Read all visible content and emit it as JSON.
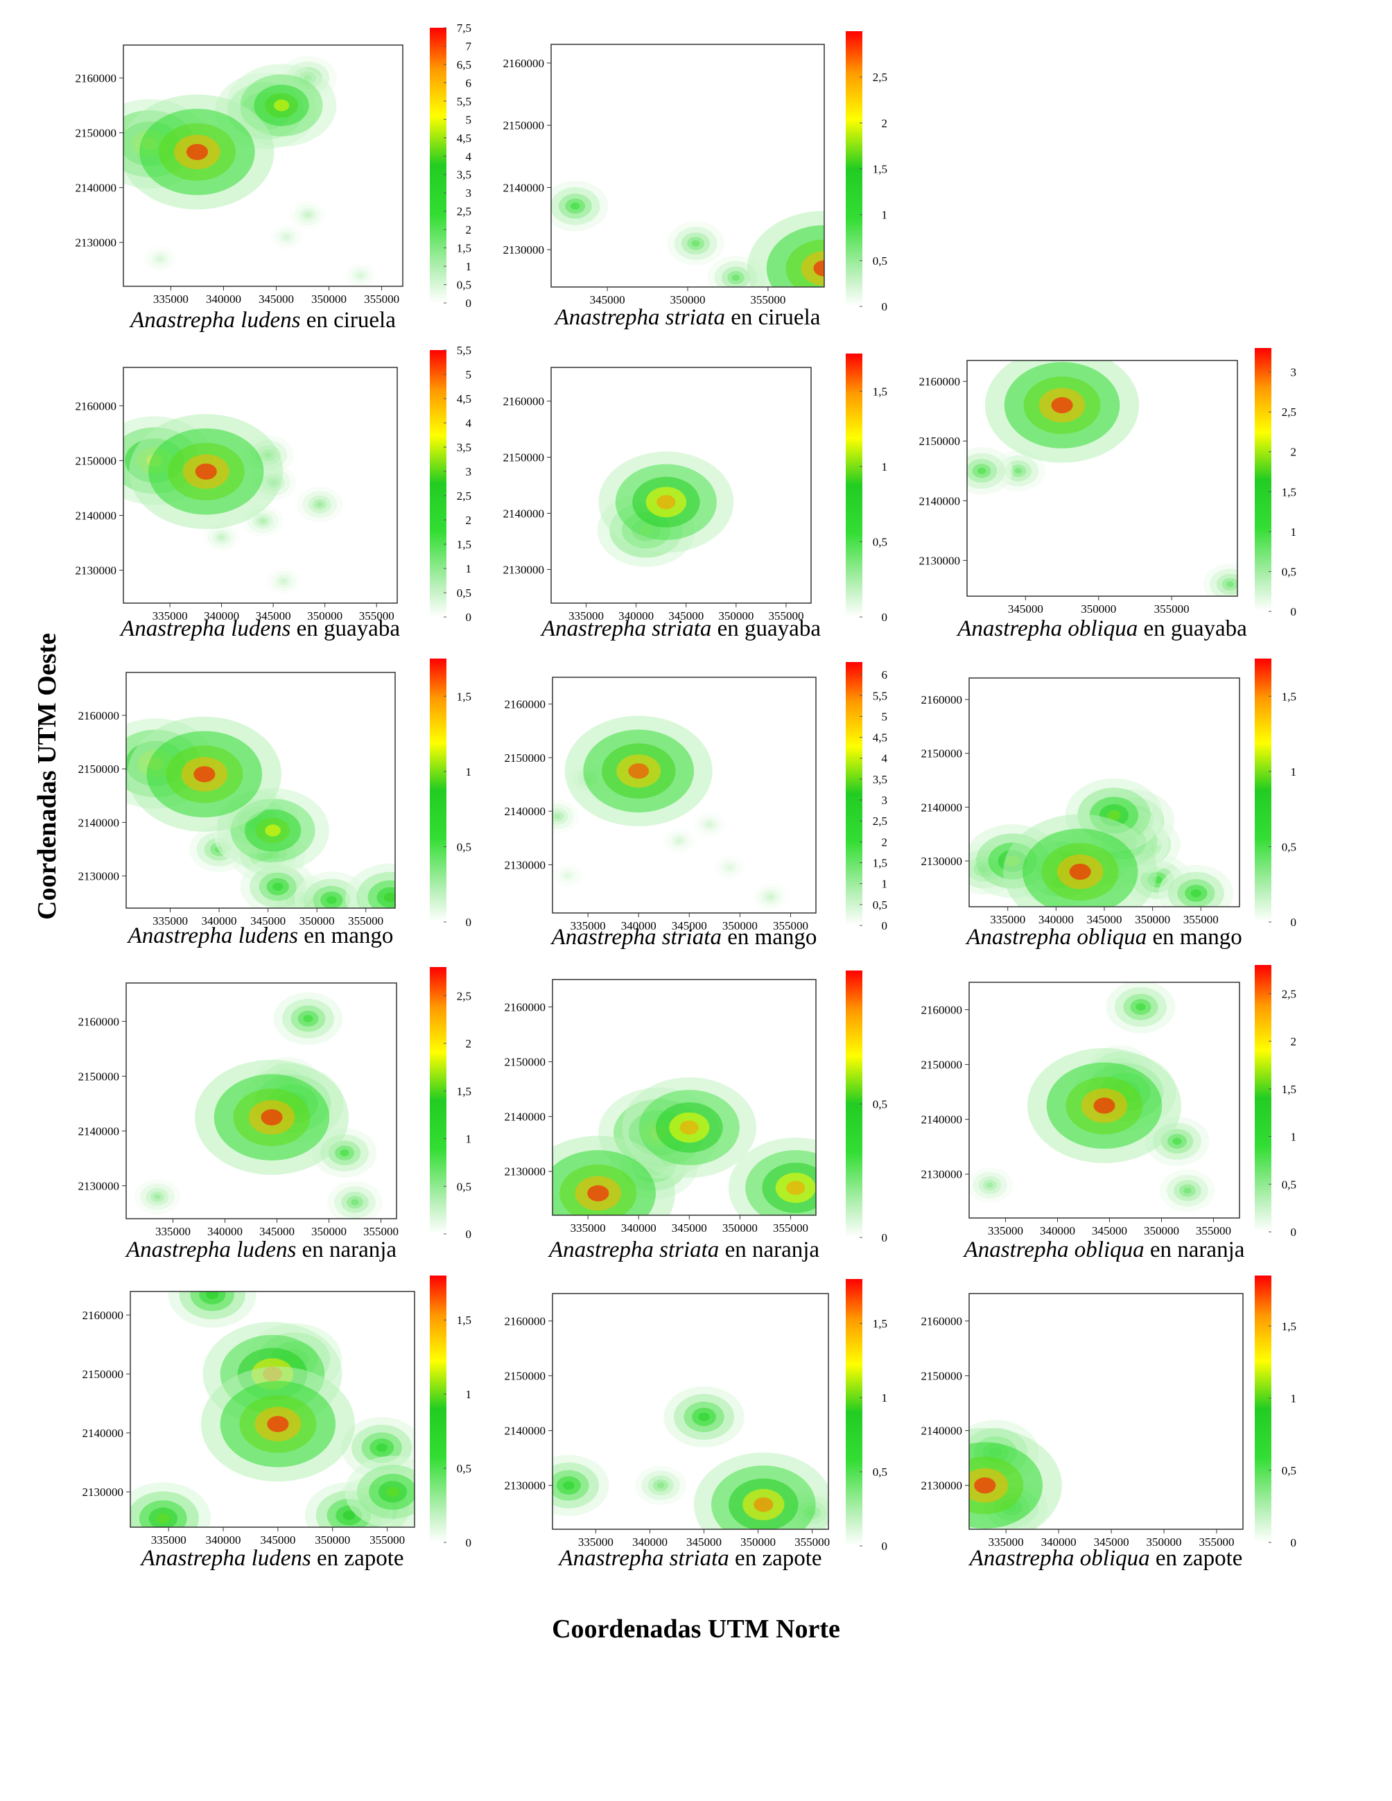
{
  "figure": {
    "ylabel": "Coordenadas UTM Oeste",
    "xlabel": "Coordenadas UTM Norte"
  },
  "chart_data": [
    {
      "type": "heatmap",
      "species": "Anastrepha ludens",
      "host": "ciruela",
      "xticks": [
        "335000",
        "340000",
        "345000",
        "350000",
        "355000"
      ],
      "yticks": [
        "2160000",
        "2150000",
        "2140000",
        "2130000"
      ],
      "colorbar": {
        "ticks": [
          "0",
          "0,5",
          "1",
          "1,5",
          "2",
          "2,5",
          "3",
          "3,5",
          "4",
          "4,5",
          "5",
          "5,5",
          "6",
          "6,5",
          "7",
          "7,5"
        ],
        "max": 7.5
      },
      "hotspots": [
        {
          "x": 337500,
          "y": 2146500,
          "value": 7.5
        },
        {
          "x": 333000,
          "y": 2148000,
          "value": 5.5
        },
        {
          "x": 345500,
          "y": 2155000,
          "value": 5.0
        },
        {
          "x": 344000,
          "y": 2154000,
          "value": 4.5
        },
        {
          "x": 348000,
          "y": 2160000,
          "value": 2.0
        },
        {
          "x": 348000,
          "y": 2135000,
          "value": 0.8
        },
        {
          "x": 346000,
          "y": 2131000,
          "value": 0.6
        },
        {
          "x": 353000,
          "y": 2124000,
          "value": 0.6
        },
        {
          "x": 334000,
          "y": 2127000,
          "value": 0.6
        }
      ]
    },
    {
      "type": "heatmap",
      "species": "Anastrepha striata",
      "host": "ciruela",
      "xticks": [
        "345000",
        "350000",
        "355000"
      ],
      "yticks": [
        "2160000",
        "2150000",
        "2140000",
        "2130000"
      ],
      "colorbar": {
        "ticks": [
          "0",
          "0,5",
          "1",
          "1,5",
          "2",
          "2,5"
        ],
        "max": 3.0
      },
      "hotspots": [
        {
          "x": 358500,
          "y": 2127000,
          "value": 3.0
        },
        {
          "x": 343000,
          "y": 2137000,
          "value": 1.0
        },
        {
          "x": 350500,
          "y": 2131000,
          "value": 0.8
        },
        {
          "x": 353000,
          "y": 2125500,
          "value": 0.8
        }
      ]
    },
    {
      "type": "heatmap",
      "species": "Anastrepha ludens",
      "host": "guayaba",
      "xticks": [
        "335000",
        "340000",
        "345000",
        "350000",
        "355000"
      ],
      "yticks": [
        "2160000",
        "2150000",
        "2140000",
        "2130000"
      ],
      "colorbar": {
        "ticks": [
          "0",
          "0,5",
          "1",
          "1,5",
          "2",
          "2,5",
          "3",
          "3,5",
          "4",
          "4,5",
          "5",
          "5,5"
        ],
        "max": 5.5
      },
      "hotspots": [
        {
          "x": 338500,
          "y": 2148000,
          "value": 5.5
        },
        {
          "x": 333500,
          "y": 2150000,
          "value": 4.0
        },
        {
          "x": 344500,
          "y": 2151000,
          "value": 1.2
        },
        {
          "x": 345000,
          "y": 2146000,
          "value": 1.0
        },
        {
          "x": 349500,
          "y": 2142000,
          "value": 1.0
        },
        {
          "x": 344000,
          "y": 2139000,
          "value": 0.8
        },
        {
          "x": 340000,
          "y": 2136000,
          "value": 0.6
        },
        {
          "x": 346000,
          "y": 2128000,
          "value": 0.5
        }
      ]
    },
    {
      "type": "heatmap",
      "species": "Anastrepha striata",
      "host": "guayaba",
      "xticks": [
        "335000",
        "340000",
        "345000",
        "350000",
        "355000"
      ],
      "yticks": [
        "2160000",
        "2150000",
        "2140000",
        "2130000"
      ],
      "colorbar": {
        "ticks": [
          "0",
          "0,5",
          "1",
          "1,5"
        ],
        "max": 1.75
      },
      "hotspots": [
        {
          "x": 343000,
          "y": 2142000,
          "value": 1.5
        },
        {
          "x": 341000,
          "y": 2137000,
          "value": 1.0
        }
      ]
    },
    {
      "type": "heatmap",
      "species": "Anastrepha obliqua",
      "host": "guayaba",
      "xticks": [
        "345000",
        "350000",
        "355000"
      ],
      "yticks": [
        "2160000",
        "2150000",
        "2140000",
        "2130000"
      ],
      "colorbar": {
        "ticks": [
          "0",
          "0,5",
          "1",
          "1,5",
          "2",
          "2,5",
          "3"
        ],
        "max": 3.3
      },
      "hotspots": [
        {
          "x": 347500,
          "y": 2156000,
          "value": 3.3
        },
        {
          "x": 342000,
          "y": 2145000,
          "value": 1.0
        },
        {
          "x": 344500,
          "y": 2145000,
          "value": 0.8
        },
        {
          "x": 359000,
          "y": 2126000,
          "value": 0.8
        }
      ]
    },
    {
      "type": "heatmap",
      "species": "Anastrepha ludens",
      "host": "mango",
      "xticks": [
        "335000",
        "340000",
        "345000",
        "350000",
        "355000"
      ],
      "yticks": [
        "2160000",
        "2150000",
        "2140000",
        "2130000"
      ],
      "colorbar": {
        "ticks": [
          "0",
          "0,5",
          "1",
          "1,5"
        ],
        "max": 1.75
      },
      "hotspots": [
        {
          "x": 338500,
          "y": 2149000,
          "value": 1.75
        },
        {
          "x": 333500,
          "y": 2151000,
          "value": 1.3
        },
        {
          "x": 345500,
          "y": 2138500,
          "value": 1.2
        },
        {
          "x": 344000,
          "y": 2140000,
          "value": 0.8
        },
        {
          "x": 343000,
          "y": 2137000,
          "value": 0.6
        },
        {
          "x": 345000,
          "y": 2134000,
          "value": 0.7
        },
        {
          "x": 340000,
          "y": 2135000,
          "value": 0.5
        },
        {
          "x": 346000,
          "y": 2128000,
          "value": 0.7
        },
        {
          "x": 357500,
          "y": 2126000,
          "value": 0.9
        },
        {
          "x": 351500,
          "y": 2125500,
          "value": 0.7
        },
        {
          "x": 348500,
          "y": 2125500,
          "value": 0.6
        }
      ]
    },
    {
      "type": "heatmap",
      "species": "Anastrepha striata",
      "host": "mango",
      "xticks": [
        "335000",
        "340000",
        "345000",
        "350000",
        "355000"
      ],
      "yticks": [
        "2160000",
        "2150000",
        "2140000",
        "2130000"
      ],
      "colorbar": {
        "ticks": [
          "0",
          "0,5",
          "1",
          "1,5",
          "2",
          "2,5",
          "3",
          "3,5",
          "4",
          "4,5",
          "5",
          "5,5",
          "6"
        ],
        "max": 6.3
      },
      "hotspots": [
        {
          "x": 340000,
          "y": 2147500,
          "value": 6.0
        },
        {
          "x": 332000,
          "y": 2139000,
          "value": 1.0
        },
        {
          "x": 335000,
          "y": 2146000,
          "value": 0.8
        },
        {
          "x": 347000,
          "y": 2137500,
          "value": 0.5
        },
        {
          "x": 344000,
          "y": 2134500,
          "value": 0.5
        },
        {
          "x": 349000,
          "y": 2129500,
          "value": 0.4
        },
        {
          "x": 333000,
          "y": 2128000,
          "value": 0.4
        },
        {
          "x": 353000,
          "y": 2124000,
          "value": 0.6
        }
      ]
    },
    {
      "type": "heatmap",
      "species": "Anastrepha obliqua",
      "host": "mango",
      "xticks": [
        "335000",
        "340000",
        "345000",
        "350000",
        "355000"
      ],
      "yticks": [
        "2160000",
        "2150000",
        "2140000",
        "2130000"
      ],
      "colorbar": {
        "ticks": [
          "0",
          "0,5",
          "1",
          "1,5"
        ],
        "max": 1.75
      },
      "hotspots": [
        {
          "x": 342500,
          "y": 2128000,
          "value": 1.75
        },
        {
          "x": 340500,
          "y": 2128500,
          "value": 1.0
        },
        {
          "x": 344000,
          "y": 2130000,
          "value": 0.9
        },
        {
          "x": 335500,
          "y": 2130000,
          "value": 1.0
        },
        {
          "x": 346000,
          "y": 2138500,
          "value": 1.0
        },
        {
          "x": 348000,
          "y": 2137500,
          "value": 0.8
        },
        {
          "x": 347000,
          "y": 2133500,
          "value": 0.9
        },
        {
          "x": 349000,
          "y": 2133000,
          "value": 0.7
        },
        {
          "x": 332500,
          "y": 2128500,
          "value": 0.6
        },
        {
          "x": 350500,
          "y": 2126500,
          "value": 0.6
        },
        {
          "x": 354500,
          "y": 2124000,
          "value": 0.7
        }
      ]
    },
    {
      "type": "heatmap",
      "species": "Anastrepha ludens",
      "host": "naranja",
      "xticks": [
        "335000",
        "340000",
        "345000",
        "350000",
        "355000"
      ],
      "yticks": [
        "2160000",
        "2150000",
        "2140000",
        "2130000"
      ],
      "colorbar": {
        "ticks": [
          "0",
          "0,5",
          "1",
          "1,5",
          "2",
          "2,5"
        ],
        "max": 2.8
      },
      "hotspots": [
        {
          "x": 344500,
          "y": 2142500,
          "value": 2.8
        },
        {
          "x": 346500,
          "y": 2145000,
          "value": 1.7
        },
        {
          "x": 348000,
          "y": 2160500,
          "value": 1.0
        },
        {
          "x": 346000,
          "y": 2149000,
          "value": 0.9
        },
        {
          "x": 351500,
          "y": 2136000,
          "value": 0.9
        },
        {
          "x": 352500,
          "y": 2127000,
          "value": 0.7
        },
        {
          "x": 333500,
          "y": 2128000,
          "value": 0.5
        }
      ]
    },
    {
      "type": "heatmap",
      "species": "Anastrepha striata",
      "host": "naranja",
      "xticks": [
        "335000",
        "340000",
        "345000",
        "350000",
        "355000"
      ],
      "yticks": [
        "2160000",
        "2150000",
        "2140000",
        "2130000"
      ],
      "colorbar": {
        "ticks": [
          "0",
          "0,5"
        ],
        "max": 1.0
      },
      "hotspots": [
        {
          "x": 336000,
          "y": 2126000,
          "value": 1.0
        },
        {
          "x": 345000,
          "y": 2138000,
          "value": 0.85
        },
        {
          "x": 342000,
          "y": 2137000,
          "value": 0.75
        },
        {
          "x": 355500,
          "y": 2127000,
          "value": 0.85
        },
        {
          "x": 341500,
          "y": 2131000,
          "value": 0.5
        }
      ]
    },
    {
      "type": "heatmap",
      "species": "Anastrepha obliqua",
      "host": "naranja",
      "xticks": [
        "335000",
        "340000",
        "345000",
        "350000",
        "355000"
      ],
      "yticks": [
        "2160000",
        "2150000",
        "2140000",
        "2130000"
      ],
      "colorbar": {
        "ticks": [
          "0",
          "0,5",
          "1",
          "1,5",
          "2",
          "2,5"
        ],
        "max": 2.8
      },
      "hotspots": [
        {
          "x": 344500,
          "y": 2142500,
          "value": 2.8
        },
        {
          "x": 346500,
          "y": 2145000,
          "value": 1.7
        },
        {
          "x": 348000,
          "y": 2160500,
          "value": 1.0
        },
        {
          "x": 346000,
          "y": 2149000,
          "value": 0.9
        },
        {
          "x": 351500,
          "y": 2136000,
          "value": 0.9
        },
        {
          "x": 352500,
          "y": 2127000,
          "value": 0.7
        },
        {
          "x": 333500,
          "y": 2128000,
          "value": 0.5
        }
      ]
    },
    {
      "type": "heatmap",
      "species": "Anastrepha ludens",
      "host": "zapote",
      "xticks": [
        "335000",
        "340000",
        "345000",
        "350000",
        "355000"
      ],
      "yticks": [
        "2160000",
        "2150000",
        "2140000",
        "2130000"
      ],
      "colorbar": {
        "ticks": [
          "0",
          "0,5",
          "1",
          "1,5"
        ],
        "max": 1.8
      },
      "hotspots": [
        {
          "x": 345000,
          "y": 2141500,
          "value": 1.8
        },
        {
          "x": 344500,
          "y": 2150000,
          "value": 1.6
        },
        {
          "x": 346500,
          "y": 2152500,
          "value": 1.0
        },
        {
          "x": 355500,
          "y": 2130000,
          "value": 1.0
        },
        {
          "x": 354000,
          "y": 2127000,
          "value": 0.9
        },
        {
          "x": 351500,
          "y": 2126000,
          "value": 0.9
        },
        {
          "x": 354500,
          "y": 2137500,
          "value": 0.8
        },
        {
          "x": 334500,
          "y": 2125500,
          "value": 1.0
        },
        {
          "x": 339000,
          "y": 2163500,
          "value": 0.9
        }
      ]
    },
    {
      "type": "heatmap",
      "species": "Anastrepha striata",
      "host": "zapote",
      "xticks": [
        "335000",
        "340000",
        "345000",
        "350000",
        "355000"
      ],
      "yticks": [
        "2160000",
        "2150000",
        "2140000",
        "2130000"
      ],
      "colorbar": {
        "ticks": [
          "0",
          "0,5",
          "1",
          "1,5"
        ],
        "max": 1.8
      },
      "hotspots": [
        {
          "x": 350500,
          "y": 2126500,
          "value": 1.6
        },
        {
          "x": 345000,
          "y": 2142500,
          "value": 0.8
        },
        {
          "x": 332500,
          "y": 2130000,
          "value": 0.8
        },
        {
          "x": 341000,
          "y": 2130000,
          "value": 0.4
        },
        {
          "x": 355000,
          "y": 2125000,
          "value": 0.5
        }
      ]
    },
    {
      "type": "heatmap",
      "species": "Anastrepha obliqua",
      "host": "zapote",
      "xticks": [
        "335000",
        "340000",
        "345000",
        "350000",
        "355000"
      ],
      "yticks": [
        "2160000",
        "2150000",
        "2140000",
        "2130000"
      ],
      "colorbar": {
        "ticks": [
          "0",
          "0,5",
          "1",
          "1,5"
        ],
        "max": 1.85
      },
      "hotspots": [
        {
          "x": 333000,
          "y": 2130000,
          "value": 1.85
        },
        {
          "x": 334000,
          "y": 2136000,
          "value": 0.9
        },
        {
          "x": 335500,
          "y": 2126000,
          "value": 0.7
        }
      ]
    }
  ]
}
